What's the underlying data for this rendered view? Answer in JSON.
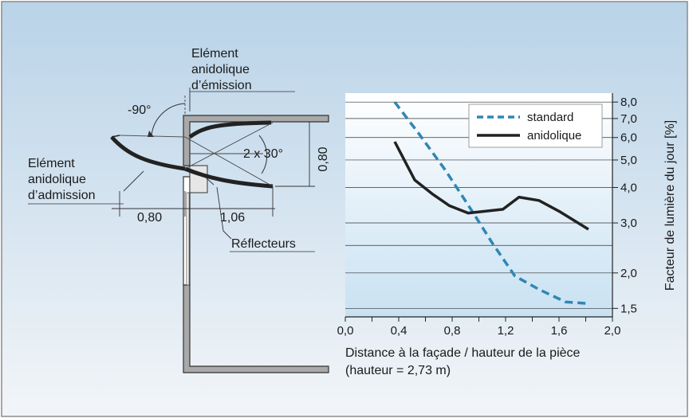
{
  "colors": {
    "panel_top": "#b9d3e8",
    "panel_bottom": "#f2f5f8",
    "plot_fill_top": "#ffffff",
    "plot_fill_bottom": "#c8e1f2",
    "wall_gray": "#a9a9a9",
    "standard_line": "#2f87b4",
    "anidolic_line": "#222222",
    "grid": "#333333"
  },
  "diagram": {
    "angle_label": "-90°",
    "emission_label": [
      "Elément",
      "anidolique",
      "d’émission"
    ],
    "admission_label": [
      "Elément",
      "anidolique",
      "d’admission"
    ],
    "opening_angle_label": "2 x 30°",
    "height_dim": "0,80",
    "width_dim_left": "0,80",
    "width_dim_right": "1,06",
    "reflectors_label": "Réflecteurs"
  },
  "chart_data": {
    "type": "line",
    "xlabel": "Distance à la façade / hauteur de la pièce",
    "xlabel_sub": "(hauteur = 2,73 m)",
    "ylabel": "Facteur de lumière du jour [%]",
    "x_ticks": [
      "0,0",
      "0,4",
      "0,8",
      "1,2",
      "1,6",
      "2,0"
    ],
    "x_tick_values": [
      0.0,
      0.4,
      0.8,
      1.2,
      1.6,
      2.0
    ],
    "xlim": [
      0.0,
      2.0
    ],
    "y_scale": "log",
    "ylim": [
      1.4,
      8.6
    ],
    "y_tick_labels": [
      "8,0",
      "7,0",
      "6,0",
      "5,0",
      "4,0",
      "3,0",
      "2,0",
      "1,5"
    ],
    "y_tick_values": [
      8.0,
      7.0,
      6.0,
      5.0,
      4.0,
      3.0,
      2.0,
      1.5
    ],
    "y_gridlines": [
      8.0,
      7.0,
      6.0,
      5.0,
      4.0,
      3.0,
      2.5,
      2.0,
      1.5
    ],
    "grid": "horizontal",
    "legend_position": "top-right",
    "series": [
      {
        "name": "standard",
        "style": "dashed",
        "color": "#2f87b4",
        "x": [
          0.37,
          0.55,
          0.75,
          0.95,
          1.1,
          1.27,
          1.45,
          1.65,
          1.82
        ],
        "y": [
          8.0,
          6.2,
          4.6,
          3.3,
          2.55,
          1.95,
          1.75,
          1.58,
          1.56
        ]
      },
      {
        "name": "anidolique",
        "style": "solid",
        "color": "#222222",
        "x": [
          0.37,
          0.52,
          0.65,
          0.78,
          0.92,
          1.05,
          1.18,
          1.3,
          1.45,
          1.6,
          1.82
        ],
        "y": [
          5.8,
          4.25,
          3.8,
          3.45,
          3.25,
          3.3,
          3.35,
          3.7,
          3.6,
          3.3,
          2.85
        ]
      }
    ]
  }
}
